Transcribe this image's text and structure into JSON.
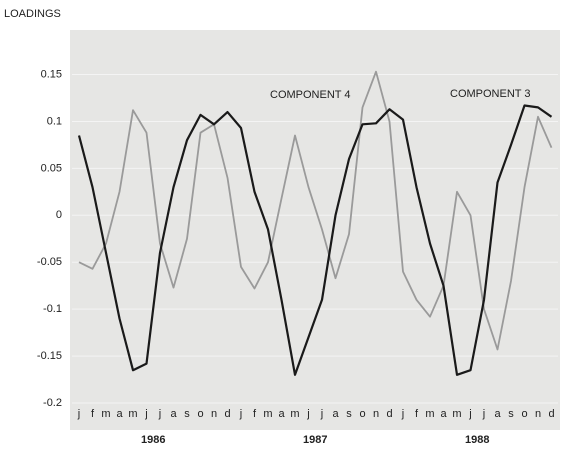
{
  "chart_data": {
    "type": "line",
    "ylabel": "LOADINGS",
    "categories": [
      "j",
      "f",
      "m",
      "a",
      "m",
      "j",
      "j",
      "a",
      "s",
      "o",
      "n",
      "d",
      "j",
      "f",
      "m",
      "a",
      "m",
      "j",
      "j",
      "a",
      "s",
      "o",
      "n",
      "d",
      "j",
      "f",
      "m",
      "a",
      "m",
      "j",
      "j",
      "a",
      "s",
      "o",
      "n",
      "d"
    ],
    "years": [
      "1986",
      "1987",
      "1988"
    ],
    "series": [
      {
        "name": "COMPONENT 3",
        "color": "#1a1a1a",
        "values": [
          0.085,
          0.03,
          -0.04,
          -0.11,
          -0.165,
          -0.158,
          -0.04,
          0.03,
          0.08,
          0.107,
          0.097,
          0.11,
          0.093,
          0.025,
          -0.015,
          -0.09,
          -0.17,
          -0.13,
          -0.09,
          0.0,
          0.06,
          0.097,
          0.098,
          0.113,
          0.102,
          0.03,
          -0.03,
          -0.075,
          -0.17,
          -0.165,
          -0.09,
          0.035,
          0.075,
          0.117,
          0.115,
          0.105
        ]
      },
      {
        "name": "COMPONENT 4",
        "color": "#9a9a9a",
        "values": [
          -0.05,
          -0.057,
          -0.03,
          0.025,
          0.112,
          0.088,
          -0.03,
          -0.077,
          -0.025,
          0.088,
          0.097,
          0.04,
          -0.055,
          -0.078,
          -0.05,
          0.018,
          0.085,
          0.03,
          -0.015,
          -0.067,
          -0.02,
          0.115,
          0.153,
          0.1,
          -0.06,
          -0.09,
          -0.108,
          -0.075,
          0.025,
          0.0,
          -0.1,
          -0.143,
          -0.07,
          0.03,
          0.105,
          0.072
        ]
      }
    ],
    "ylim": [
      -0.2,
      0.19
    ],
    "yticks": [
      -0.2,
      -0.15,
      -0.1,
      -0.05,
      0,
      0.05,
      0.1,
      0.15
    ]
  }
}
